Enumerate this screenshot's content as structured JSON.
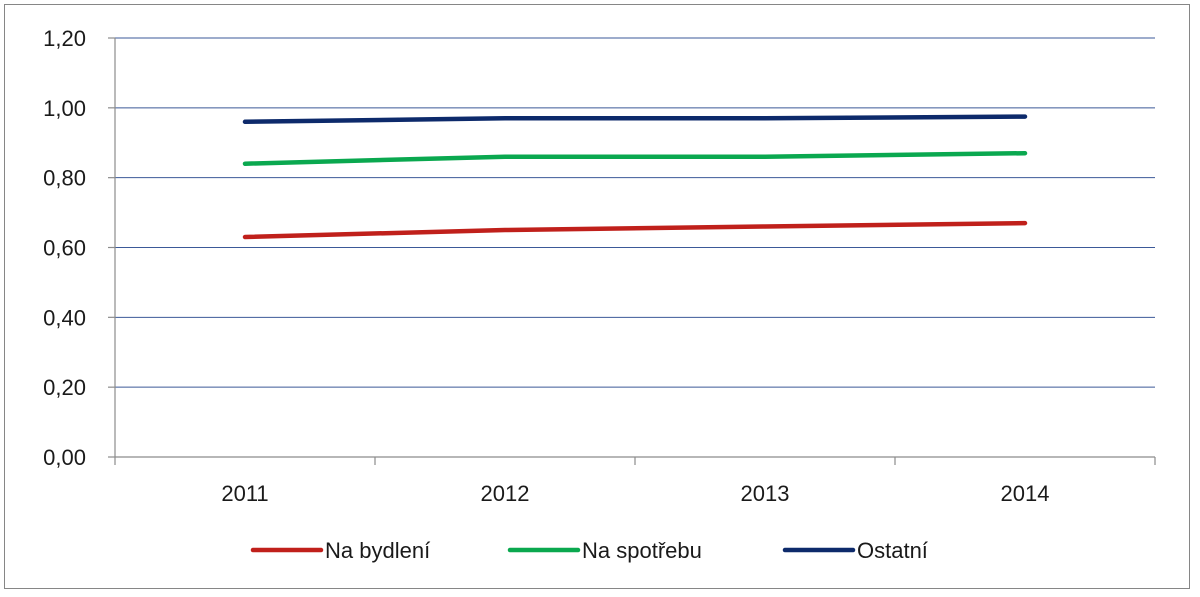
{
  "chart_data": {
    "type": "line",
    "title": "",
    "xlabel": "",
    "ylabel": "",
    "categories": [
      "2011",
      "2012",
      "2013",
      "2014"
    ],
    "ylim": [
      0,
      1.2
    ],
    "yticks": [
      "0,00",
      "0,20",
      "0,40",
      "0,60",
      "0,80",
      "1,00",
      "1,20"
    ],
    "grid": true,
    "legend_position": "bottom",
    "series": [
      {
        "name": "Na bydlení",
        "color": "#c0201b",
        "values": [
          0.63,
          0.65,
          0.66,
          0.67
        ]
      },
      {
        "name": "Na spotřebu",
        "color": "#0aa84f",
        "values": [
          0.84,
          0.86,
          0.86,
          0.87
        ]
      },
      {
        "name": "Ostatní",
        "color": "#0d2a6b",
        "values": [
          0.96,
          0.97,
          0.97,
          0.975
        ]
      }
    ]
  }
}
